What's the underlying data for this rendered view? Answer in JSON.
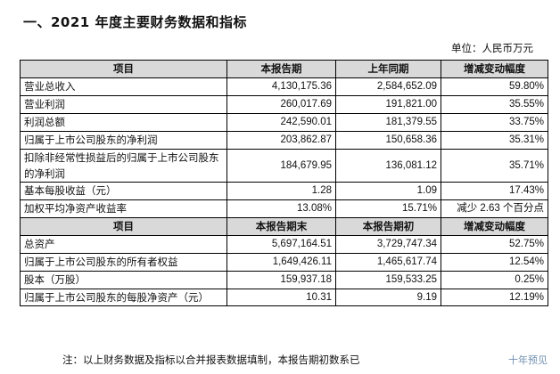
{
  "title": "一、2021 年度主要财务数据和指标",
  "unit": "单位：人民币万元",
  "section1": {
    "headers": [
      "项目",
      "本报告期",
      "上年同期",
      "增减变动幅度"
    ],
    "rows": [
      [
        "营业总收入",
        "4,130,175.36",
        "2,584,652.09",
        "59.80%"
      ],
      [
        "营业利润",
        "260,017.69",
        "191,821.00",
        "35.55%"
      ],
      [
        "利润总额",
        "242,590.01",
        "181,379.55",
        "33.75%"
      ],
      [
        "归属于上市公司股东的净利润",
        "203,862.87",
        "150,658.36",
        "35.31%"
      ],
      [
        "扣除非经常性损益后的归属于上市公司股东的净利润",
        "184,679.95",
        "136,081.12",
        "35.71%"
      ],
      [
        "基本每股收益（元）",
        "1.28",
        "1.09",
        "17.43%"
      ],
      [
        "加权平均净资产收益率",
        "13.08%",
        "15.71%",
        "减少 2.63 个百分点"
      ]
    ]
  },
  "section2": {
    "headers": [
      "项目",
      "本报告期末",
      "本报告期初",
      "增减变动幅度"
    ],
    "rows": [
      [
        "总资产",
        "5,697,164.51",
        "3,729,747.34",
        "52.75%"
      ],
      [
        "归属于上市公司股东的所有者权益",
        "1,649,426.11",
        "1,465,617.74",
        "12.54%"
      ],
      [
        "股本（万股）",
        "159,937.18",
        "159,533.25",
        "0.25%"
      ],
      [
        "归属于上市公司股东的每股净资产（元）",
        "10.31",
        "9.19",
        "12.19%"
      ]
    ]
  },
  "note": "注：以上财务数据及指标以合并报表数据填制，本报告期初数系已",
  "watermark": "十年预见"
}
